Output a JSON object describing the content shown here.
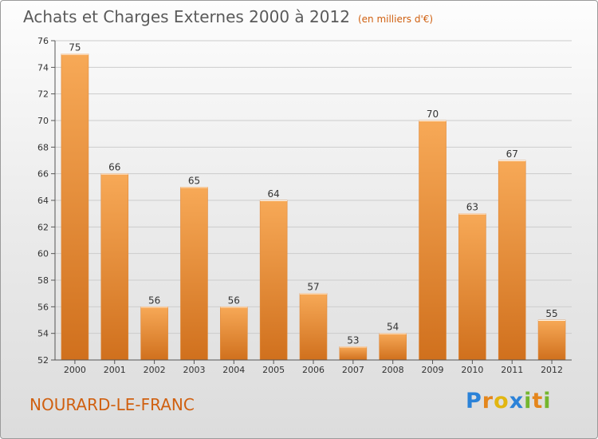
{
  "header": {
    "title": "Achats et Charges Externes 2000 à 2012",
    "unit": "(en milliers d'€)"
  },
  "footer": {
    "commune": "NOURARD-LE-FRANC",
    "brand": {
      "p": "P",
      "r": "r",
      "o": "o",
      "x": "x",
      "i1": "i",
      "t": "t",
      "i2": "i"
    }
  },
  "colors": {
    "bar_light": "#f7a957",
    "bar_dark": "#d0701d",
    "axis": "#555555",
    "grid": "#cccccc"
  },
  "chart_data": {
    "type": "bar",
    "title": "Achats et Charges Externes 2000 à 2012",
    "xlabel": "",
    "ylabel": "",
    "categories": [
      "2000",
      "2001",
      "2002",
      "2003",
      "2004",
      "2005",
      "2006",
      "2007",
      "2008",
      "2009",
      "2010",
      "2011",
      "2012"
    ],
    "values": [
      75,
      66,
      56,
      65,
      56,
      64,
      57,
      53,
      54,
      70,
      63,
      67,
      55
    ],
    "ylim": [
      52,
      76
    ],
    "yticks": [
      52,
      54,
      56,
      58,
      60,
      62,
      64,
      66,
      68,
      70,
      72,
      74,
      76
    ],
    "grid": true,
    "data_labels": true
  }
}
